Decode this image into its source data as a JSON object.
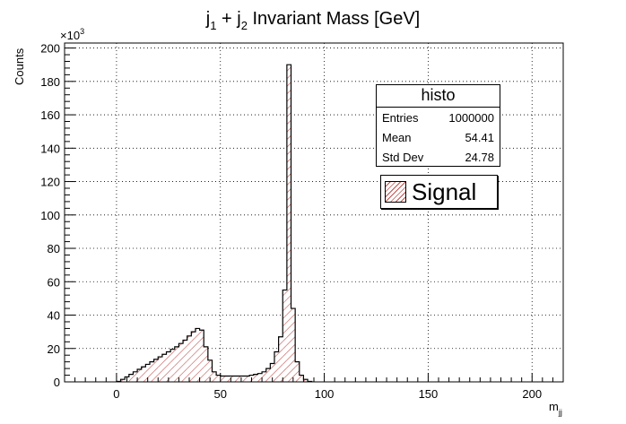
{
  "chart_data": {
    "type": "histogram",
    "title_parts": {
      "j1": "j",
      "sub1": "1",
      "plus": " + j",
      "sub2": "2",
      "rest": " Invariant  Mass [GeV]"
    },
    "xlabel_main": "m",
    "xlabel_sub": "jj",
    "ylabel": "Counts",
    "y_multiplier_base": "×10",
    "y_multiplier_exp": "3",
    "xlim": [
      -25,
      215
    ],
    "ylim": [
      0,
      203
    ],
    "x_ticks": [
      0,
      50,
      100,
      150,
      200
    ],
    "y_ticks": [
      0,
      20,
      40,
      60,
      80,
      100,
      120,
      140,
      160,
      180,
      200
    ],
    "grid": true,
    "bin_width": 2,
    "bins_start": 0,
    "values": [
      0.3,
      1.5,
      3,
      4.5,
      6,
      7.5,
      9,
      10.5,
      12,
      13.5,
      15,
      16.5,
      18,
      19.5,
      21,
      23,
      25,
      27.5,
      30,
      32,
      31,
      21,
      13,
      6,
      4,
      3.5,
      3.5,
      3.5,
      3.5,
      3.5,
      3.5,
      3.5,
      4,
      4.5,
      5,
      6,
      8,
      11,
      18,
      27,
      55,
      190,
      44,
      12,
      4,
      1.5,
      0.3
    ],
    "series": [
      {
        "name": "Signal",
        "fill": "#c0504d"
      }
    ],
    "legend_position": "top-right",
    "stats": {
      "title": "histo",
      "rows": [
        {
          "label": "Entries",
          "value": "1000000"
        },
        {
          "label": "Mean",
          "value": "54.41"
        },
        {
          "label": "Std Dev",
          "value": "24.78"
        }
      ]
    }
  }
}
